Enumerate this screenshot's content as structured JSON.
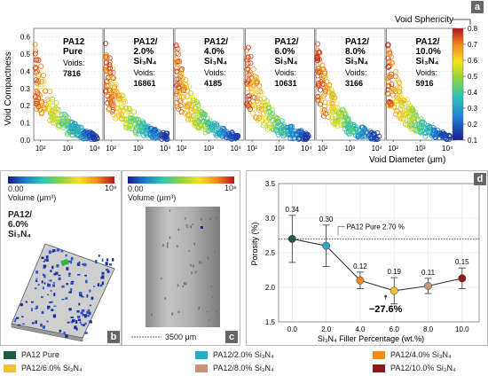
{
  "panel_a": {
    "label": "a",
    "ylabel": "Void Compactness",
    "xlabel": "Void Diameter (μm)",
    "colorbar_title": "Void Sphericity",
    "colorbar_ticks": [
      "0.8",
      "0.7",
      "0.6",
      "0.5",
      "0.4",
      "0.3",
      "0.2",
      "0.1"
    ],
    "y_ticks": [
      "0.0",
      "0.1",
      "0.2",
      "0.3",
      "0.4",
      "0.5",
      "0.6"
    ],
    "x_tick_labels": [
      "10²",
      "10³",
      "10⁴"
    ],
    "voids_label": "Voids:",
    "subplots": [
      {
        "name_lines": [
          "PA12",
          "Pure"
        ],
        "voids": "7816"
      },
      {
        "name_lines": [
          "PA12/",
          "2.0%",
          "Si₃N₄"
        ],
        "voids": "16861"
      },
      {
        "name_lines": [
          "PA12/",
          "4.0%",
          "Si₃N₄"
        ],
        "voids": "4185"
      },
      {
        "name_lines": [
          "PA12/",
          "6.0%",
          "Si₃N₄"
        ],
        "voids": "10631"
      },
      {
        "name_lines": [
          "PA12/",
          "8.0%",
          "Si₃N₄"
        ],
        "voids": "3166"
      },
      {
        "name_lines": [
          "PA12/",
          "10.0%",
          "Si₃N₄"
        ],
        "voids": "5916"
      }
    ]
  },
  "panel_b": {
    "label": "b",
    "cb_min": "0.00",
    "cb_max": "10⁸",
    "cb_title": "Volume (μm³)",
    "sample_lines": [
      "PA12/",
      "6.0%",
      "Si₃N₄"
    ]
  },
  "panel_c": {
    "label": "c",
    "cb_min": "0.00",
    "cb_max": "10⁸",
    "cb_title": "Volume (μm³)",
    "scalebar": "3500 μm"
  },
  "chart_data": {
    "type": "line",
    "label": "d",
    "ylabel": "Porosity (%)",
    "xlabel": "Si₃N₄ Filler Percentage (wt.%)",
    "xlim": [
      -0.8,
      11
    ],
    "ylim": [
      1.5,
      3.5
    ],
    "x_ticks": [
      "0.0",
      "2.0",
      "4.0",
      "6.0",
      "8.0",
      "10.0"
    ],
    "y_ticks": [
      "1.5",
      "2.0",
      "2.5",
      "3.0",
      "3.5"
    ],
    "x": [
      0,
      2,
      4,
      6,
      8,
      10
    ],
    "values": [
      2.7,
      2.6,
      2.1,
      1.95,
      2.02,
      2.13
    ],
    "errors": [
      0.34,
      0.3,
      0.12,
      0.19,
      0.11,
      0.15
    ],
    "error_labels": [
      "0.34",
      "0.30",
      "0.12",
      "0.19",
      "0.11",
      "0.15"
    ],
    "point_colors": [
      "#1d5c3f",
      "#2aa7c9",
      "#f08a24",
      "#f2c12e",
      "#c9907a",
      "#8b1a1a"
    ],
    "reference_value": 2.7,
    "reference_label": "PA12 Pure 2.70 %",
    "min_annotation": "−27.6%",
    "min_annotation_x": 5.5,
    "min_annotation_y": 1.87
  },
  "legend": [
    {
      "label": "PA12 Pure",
      "color": "#1d5c3f"
    },
    {
      "label": "PA12/2.0% Si₃N₄",
      "color": "#2aa7c9"
    },
    {
      "label": "PA12/4.0% Si₃N₄",
      "color": "#f08a24"
    },
    {
      "label": "PA12/6.0% Si₃N₄",
      "color": "#f2c12e"
    },
    {
      "label": "PA12/8.0% Si₃N₄",
      "color": "#c9907a"
    },
    {
      "label": "PA12/10.0% Si₃N₄",
      "color": "#8b1a1a"
    }
  ]
}
